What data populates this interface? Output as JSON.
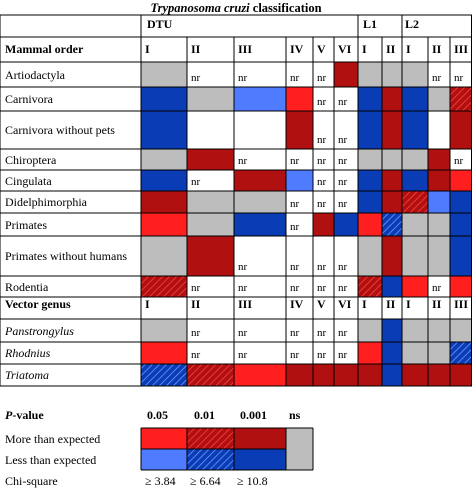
{
  "title": {
    "italic": "Trypanosoma cruzi",
    "rest": " classification"
  },
  "headers": {
    "dtu": "DTU",
    "l1": "L1",
    "l2": "L2",
    "mammal_order": "Mammal order",
    "vector_genus": "Vector genus",
    "cols": [
      "I",
      "II",
      "III",
      "IV",
      "V",
      "VI",
      "I",
      "II",
      "I",
      "II",
      "III"
    ]
  },
  "mammal_rows": [
    {
      "label": "Artiodactyla"
    },
    {
      "label": "Carnivora"
    },
    {
      "label": "Carnivora without pets"
    },
    {
      "label": "Chiroptera"
    },
    {
      "label": "Cingulata"
    },
    {
      "label": "Didelphimorphia"
    },
    {
      "label": "Primates"
    },
    {
      "label": "Primates without humans"
    },
    {
      "label": "Rodentia"
    }
  ],
  "vector_rows": [
    {
      "label": "Panstrongylus"
    },
    {
      "label": "Rhodnius"
    },
    {
      "label": "Triatoma"
    }
  ],
  "nr_label": "nr",
  "legend": {
    "pvalue_label": "P",
    "pvalue_rest": "-value",
    "p_values": [
      "0.05",
      "0.01",
      "0.001",
      "ns"
    ],
    "more": "More than expected",
    "less": "Less than expected",
    "chisq": "Chi-square",
    "chisq_values": [
      "≥ 3.84",
      "≥ 6.64",
      "≥ 10.8"
    ]
  },
  "colors": {
    "red": "#ff1f1f",
    "darkred": "#b01010",
    "lightblue": "#4f7cff",
    "blue": "#0a3db5",
    "gray": "#bdbdbd"
  }
}
